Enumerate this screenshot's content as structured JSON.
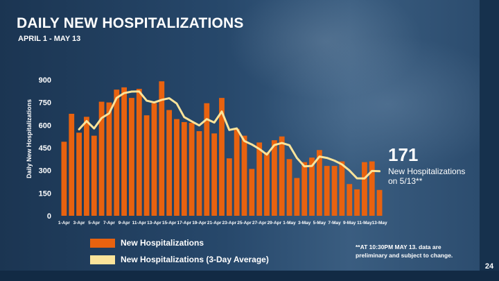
{
  "slide": {
    "title": "DAILY NEW HOSPITALIZATIONS",
    "subtitle": "APRIL 1 - MAY 13",
    "page_number": "24"
  },
  "callout": {
    "number": "171",
    "text": "New Hospitalizations on 5/13**"
  },
  "legend": {
    "bar_label": "New Hospitalizations",
    "line_label": "New Hospitalizations (3-Day Average)"
  },
  "footnote": "**AT 10:30PM MAY 13. data are preliminary and subject to change.",
  "colors": {
    "bar": "#e8620f",
    "line": "#fbe49a",
    "text": "#ffffff"
  },
  "chart_data": {
    "type": "bar",
    "title": "DAILY NEW HOSPITALIZATIONS",
    "xlabel": "",
    "ylabel": "Daily New Hospitalizations",
    "ylim": [
      0,
      900
    ],
    "yticks": [
      0,
      150,
      300,
      450,
      600,
      750,
      900
    ],
    "grid": false,
    "categories": [
      "1-Apr",
      "2-Apr",
      "3-Apr",
      "4-Apr",
      "5-Apr",
      "6-Apr",
      "7-Apr",
      "8-Apr",
      "9-Apr",
      "10-Apr",
      "11-Apr",
      "12-Apr",
      "13-Apr",
      "14-Apr",
      "15-Apr",
      "16-Apr",
      "17-Apr",
      "18-Apr",
      "19-Apr",
      "20-Apr",
      "21-Apr",
      "22-Apr",
      "23-Apr",
      "24-Apr",
      "25-Apr",
      "26-Apr",
      "27-Apr",
      "28-Apr",
      "29-Apr",
      "30-Apr",
      "1-May",
      "2-May",
      "3-May",
      "4-May",
      "5-May",
      "6-May",
      "7-May",
      "8-May",
      "9-May",
      "10-May",
      "11-May",
      "12-May",
      "13-May"
    ],
    "x_tick_labels": [
      "1-Apr",
      "3-Apr",
      "5-Apr",
      "7-Apr",
      "9-Apr",
      "11-Apr",
      "13-Apr",
      "15-Apr",
      "17-Apr",
      "19-Apr",
      "21-Apr",
      "23-Apr",
      "25-Apr",
      "27-Apr",
      "29-Apr",
      "1-May",
      "3-May",
      "5-May",
      "7-May",
      "9-May",
      "11-May",
      "13-May"
    ],
    "series": [
      {
        "name": "New Hospitalizations",
        "type": "bar",
        "values": [
          490,
          675,
          550,
          655,
          530,
          755,
          750,
          835,
          850,
          780,
          840,
          665,
          745,
          890,
          700,
          640,
          620,
          615,
          560,
          745,
          545,
          780,
          380,
          575,
          530,
          310,
          485,
          420,
          500,
          525,
          375,
          250,
          355,
          385,
          435,
          330,
          330,
          360,
          210,
          175,
          355,
          360,
          171
        ]
      },
      {
        "name": "New Hospitalizations (3-Day Average)",
        "type": "line",
        "values": [
          null,
          null,
          572,
          627,
          578,
          647,
          678,
          780,
          812,
          822,
          823,
          762,
          750,
          767,
          778,
          743,
          653,
          625,
          598,
          640,
          617,
          690,
          568,
          578,
          495,
          472,
          442,
          405,
          468,
          482,
          467,
          383,
          327,
          330,
          392,
          383,
          365,
          340,
          300,
          248,
          247,
          297,
          295
        ]
      }
    ]
  }
}
